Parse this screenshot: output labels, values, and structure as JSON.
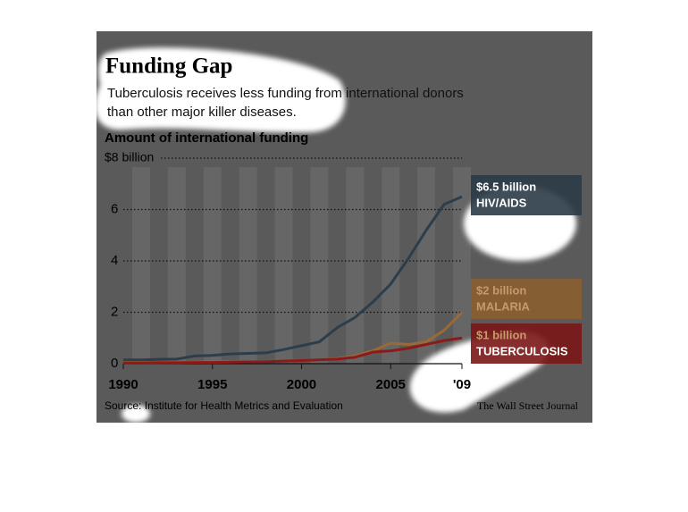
{
  "chart_data": {
    "type": "line",
    "title": "Funding Gap",
    "subtitle": [
      "Tuberculosis receives less funding from international donors",
      "than other major killer diseases."
    ],
    "ylabel": "Amount of international funding",
    "source": "Source: Institute for Health Metrics and Evaluation",
    "credit": "The Wall Street Journal",
    "x": [
      1990,
      1991,
      1992,
      1993,
      1994,
      1995,
      1996,
      1997,
      1998,
      1999,
      2000,
      2001,
      2002,
      2003,
      2004,
      2005,
      2006,
      2007,
      2008,
      2009
    ],
    "series": [
      {
        "name": "HIV/AIDS",
        "end_label": "$6.5 billion",
        "color": "#2c3e4c",
        "values": [
          0.15,
          0.15,
          0.17,
          0.18,
          0.3,
          0.32,
          0.38,
          0.4,
          0.42,
          0.55,
          0.7,
          0.85,
          1.4,
          1.8,
          2.4,
          3.1,
          4.1,
          5.2,
          6.2,
          6.5
        ]
      },
      {
        "name": "MALARIA",
        "end_label": "$2 billion",
        "color": "#9a6a36",
        "values": [
          0.05,
          0.05,
          0.05,
          0.06,
          0.06,
          0.07,
          0.08,
          0.08,
          0.09,
          0.1,
          0.12,
          0.15,
          0.2,
          0.3,
          0.5,
          0.8,
          0.75,
          0.85,
          1.3,
          2
        ]
      },
      {
        "name": "TUBERCULOSIS",
        "end_label": "$1 billion",
        "color": "#8b1a1a",
        "values": [
          0.03,
          0.03,
          0.04,
          0.04,
          0.05,
          0.05,
          0.06,
          0.07,
          0.08,
          0.1,
          0.12,
          0.15,
          0.18,
          0.25,
          0.45,
          0.5,
          0.6,
          0.75,
          0.9,
          1
        ]
      }
    ],
    "xlim": [
      1990,
      2009
    ],
    "xticks": [
      1990,
      1995,
      2000,
      2005,
      {
        "value": 2009,
        "label": "'09"
      }
    ],
    "ylim": [
      0,
      8
    ],
    "yticks": [
      0,
      2,
      4,
      6,
      {
        "value": 8,
        "label": "$8 billion"
      }
    ],
    "grid": true
  }
}
